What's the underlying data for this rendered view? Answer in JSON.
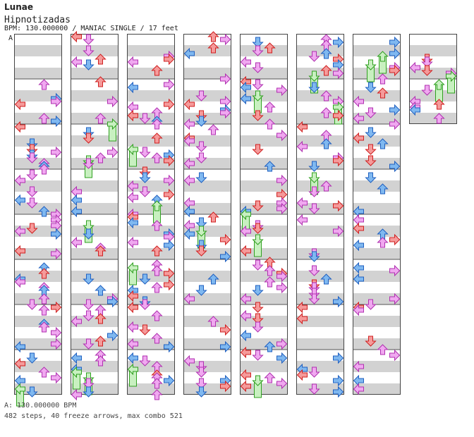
{
  "header": {
    "artist": "Lunae",
    "song": "Hipnotizadas",
    "info": "BPM: 130.000000 / MANIAC SINGLE / 17 feet"
  },
  "bpm_marker": "A",
  "footer": {
    "bpm": "A: 130.000000 BPM",
    "stats": "482 steps, 40 freeze arrows, max combo 521"
  },
  "colors": {
    "quarter": "#f59a9a",
    "quarter_stroke": "#d02020",
    "eighth": "#7fb8f0",
    "eighth_stroke": "#2060c0",
    "sixteenth": "#f0a8f0",
    "sixteenth_stroke": "#b030b0",
    "freeze": "#c8f0c0",
    "freeze_stroke": "#30a020",
    "stripe": "#d2d2d2"
  },
  "columns": [
    {
      "measures": 8
    },
    {
      "measures": 8
    },
    {
      "measures": 8
    },
    {
      "measures": 8
    },
    {
      "measures": 8
    },
    {
      "measures": 8
    },
    {
      "measures": 8
    },
    {
      "measures": 2
    }
  ]
}
